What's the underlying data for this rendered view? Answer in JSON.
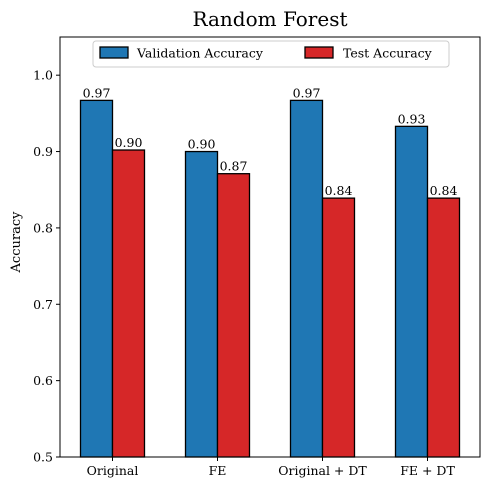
{
  "chart_data": {
    "type": "bar",
    "title": "Random Forest",
    "xlabel": "",
    "ylabel": "Accuracy",
    "categories": [
      "Original",
      "FE",
      "Original + DT",
      "FE + DT"
    ],
    "series": [
      {
        "name": "Validation Accuracy",
        "color": "#1f77b4",
        "values": [
          0.967,
          0.9,
          0.967,
          0.933
        ],
        "labels": [
          "0.97",
          "0.90",
          "0.97",
          "0.93"
        ]
      },
      {
        "name": "Test Accuracy",
        "color": "#d62728",
        "values": [
          0.902,
          0.871,
          0.839,
          0.839
        ],
        "labels": [
          "0.90",
          "0.87",
          "0.84",
          "0.84"
        ]
      }
    ],
    "ylim": [
      0.5,
      1.05
    ],
    "yticks": [
      0.5,
      0.6,
      0.7,
      0.8,
      0.9,
      1.0
    ],
    "ytick_labels": [
      "0.5",
      "0.6",
      "0.7",
      "0.8",
      "0.9",
      "1.0"
    ],
    "grid": false,
    "legend_position": "top-center"
  }
}
